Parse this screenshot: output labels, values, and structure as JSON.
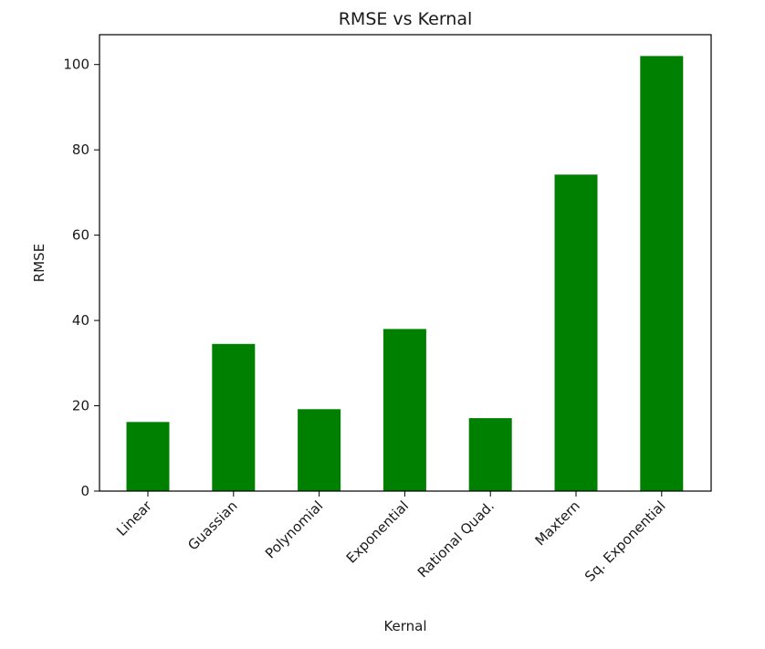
{
  "chart_data": {
    "type": "bar",
    "title": "RMSE vs Kernal",
    "xlabel": "Kernal",
    "ylabel": "RMSE",
    "categories": [
      "Linear",
      "Guassian",
      "Polynomial",
      "Exponential",
      "Rational Quad.",
      "Maxtern",
      "Sq. Exponential"
    ],
    "values": [
      16.2,
      34.5,
      19.2,
      38.0,
      17.1,
      74.2,
      102.0
    ],
    "ylim": [
      0,
      107
    ],
    "yticks": [
      0,
      20,
      40,
      60,
      80,
      100
    ],
    "bar_color": "#008000",
    "grid": false,
    "legend": false
  }
}
